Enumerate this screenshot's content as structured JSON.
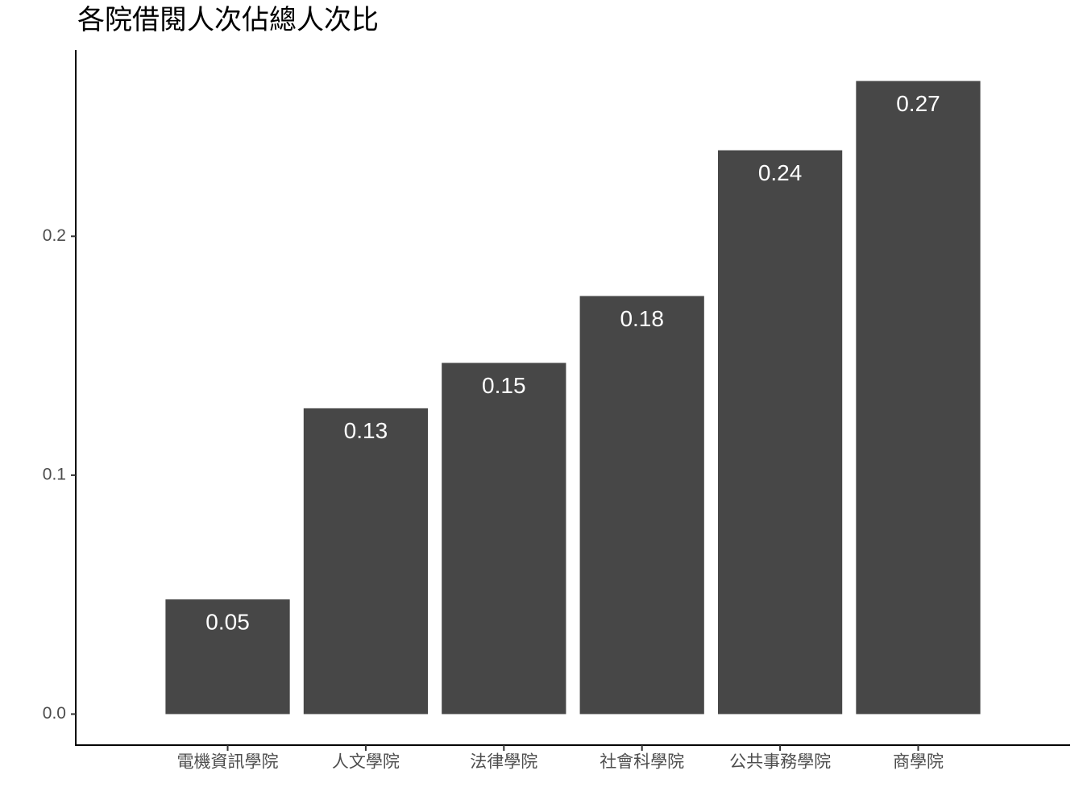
{
  "chart_data": {
    "type": "bar",
    "title": "各院借閱人次佔總人次比",
    "categories": [
      "電機資訊學院",
      "人文學院",
      "法律學院",
      "社會科學院",
      "公共事務學院",
      "商學院"
    ],
    "values": [
      0.048,
      0.128,
      0.147,
      0.175,
      0.236,
      0.265
    ],
    "value_labels": [
      "0.05",
      "0.13",
      "0.15",
      "0.18",
      "0.24",
      "0.27"
    ],
    "color": "#474747",
    "ylim": [
      -0.013,
      0.278
    ],
    "yticks": [
      {
        "value": 0,
        "label": "0.0"
      },
      0.1,
      0.2
    ],
    "grid": false
  }
}
